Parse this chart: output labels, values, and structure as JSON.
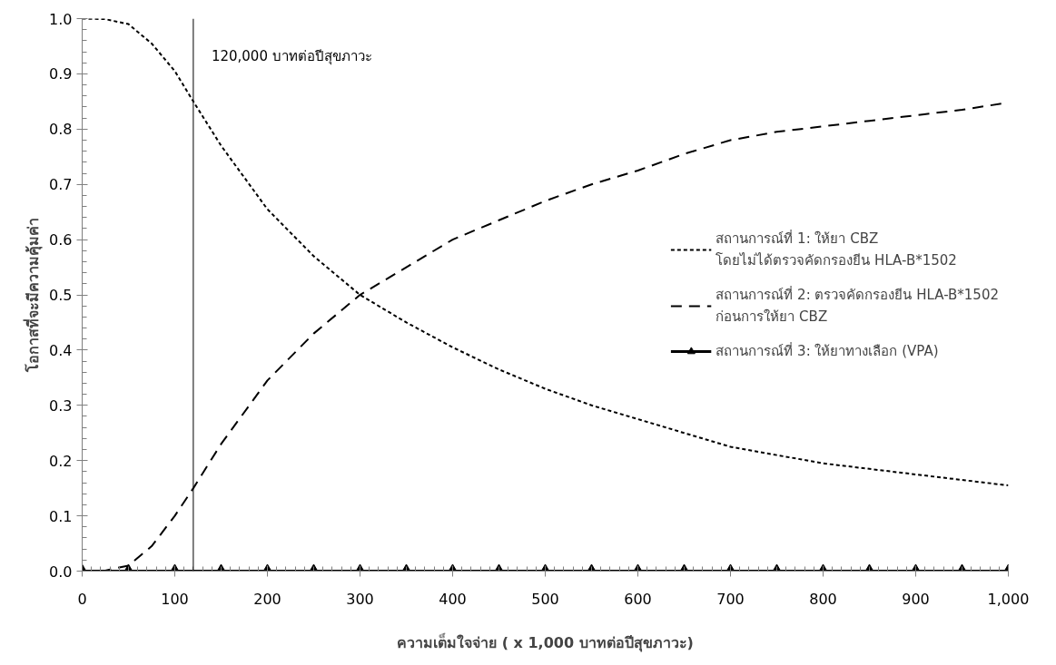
{
  "chart_data": {
    "type": "line",
    "xlabel": "ความเต็มใจจ่าย ( x 1,000 บาทต่อปีสุขภาวะ)",
    "ylabel": "โอกาสที่จะมีความคุ้มค่า",
    "x": [
      0,
      25,
      50,
      75,
      100,
      120,
      150,
      200,
      250,
      300,
      350,
      400,
      450,
      500,
      550,
      600,
      650,
      700,
      750,
      800,
      850,
      900,
      950,
      1000
    ],
    "series": [
      {
        "name": "สถานการณ์ที่ 1: ให้ยา CBZ โดยไม่ได้ตรวจคัดกรองยีน HLA-B*1502",
        "color": "#000000",
        "line_style": "dotted",
        "marker": "none",
        "values": [
          1.0,
          0.999,
          0.99,
          0.955,
          0.905,
          0.85,
          0.77,
          0.655,
          0.57,
          0.5,
          0.45,
          0.405,
          0.365,
          0.33,
          0.3,
          0.275,
          0.25,
          0.225,
          0.21,
          0.195,
          0.185,
          0.175,
          0.165,
          0.155
        ]
      },
      {
        "name": "สถานการณ์ที่ 2: ตรวจคัดกรองยีน HLA-B*1502 ก่อนการให้ยา CBZ",
        "color": "#000000",
        "line_style": "dashed",
        "marker": "none",
        "values": [
          0.0,
          0.001,
          0.01,
          0.045,
          0.1,
          0.15,
          0.23,
          0.345,
          0.43,
          0.5,
          0.55,
          0.6,
          0.635,
          0.67,
          0.7,
          0.725,
          0.755,
          0.78,
          0.795,
          0.805,
          0.815,
          0.825,
          0.835,
          0.848
        ]
      },
      {
        "name": "สถานการณ์ที่ 3: ให้ยาทางเลือก (VPA)",
        "color": "#000000",
        "line_style": "solid",
        "marker": "triangle",
        "x": [
          0,
          50,
          100,
          150,
          200,
          250,
          300,
          350,
          400,
          450,
          500,
          550,
          600,
          650,
          700,
          750,
          800,
          850,
          900,
          950,
          1000
        ],
        "values": [
          0,
          0,
          0,
          0,
          0,
          0,
          0,
          0,
          0,
          0,
          0,
          0,
          0,
          0,
          0,
          0,
          0,
          0,
          0,
          0,
          0
        ]
      }
    ],
    "xlim": [
      0,
      1000
    ],
    "xticks": [
      0,
      100,
      200,
      300,
      400,
      500,
      600,
      700,
      800,
      900,
      {
        "value": 1000,
        "label": "1,000"
      }
    ],
    "ylim": [
      0,
      1.0
    ],
    "yticks": [
      {
        "value": 0,
        "label": "0.0"
      },
      0.1,
      0.2,
      0.3,
      0.4,
      0.5,
      0.6,
      0.7,
      0.8,
      0.9,
      {
        "value": 1.0,
        "label": "1.0"
      }
    ],
    "ref_lines": [
      {
        "axis": "x",
        "value": 120,
        "label": "120,000 บาทต่อปีสุขภาวะ",
        "color": "#000000",
        "line_style": "solid"
      }
    ],
    "grid": false,
    "legend": "right"
  }
}
